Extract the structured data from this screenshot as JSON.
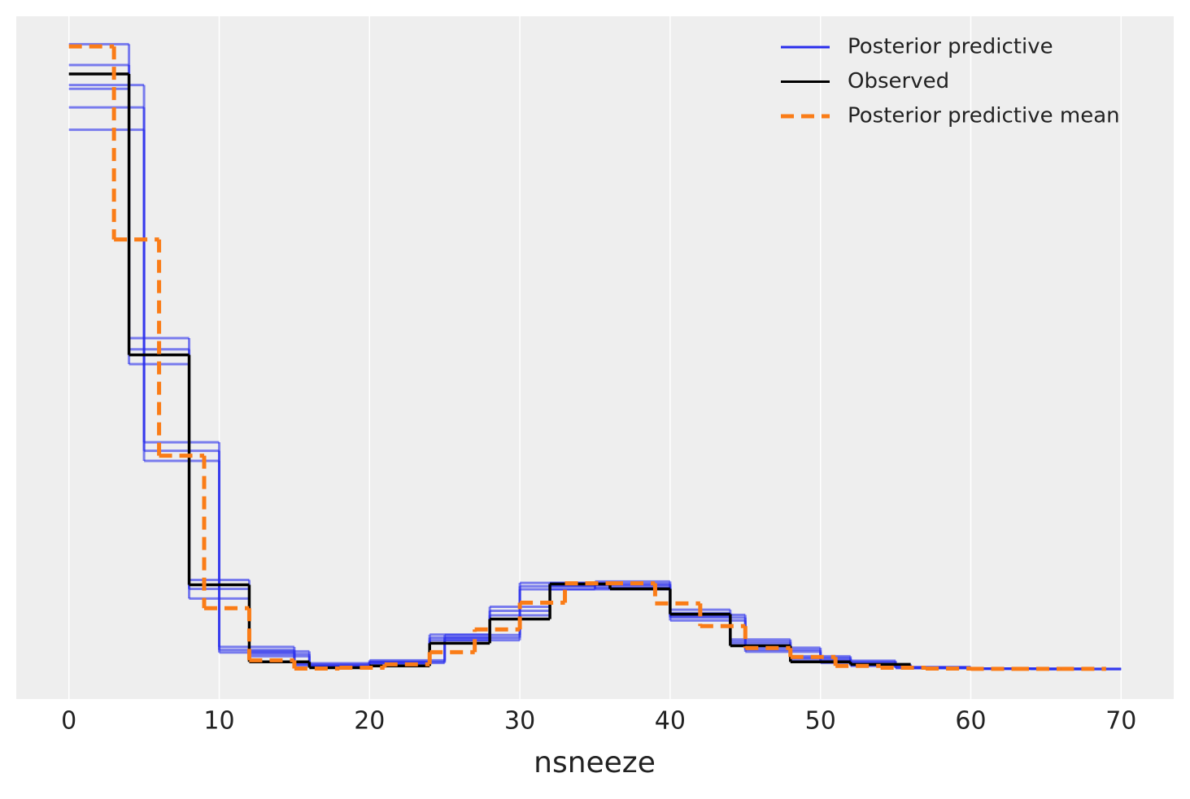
{
  "chart_data": {
    "type": "step-histogram",
    "x_label": "nsneeze",
    "xlim": [
      -3.5,
      73.5
    ],
    "xticks": [
      0,
      10,
      20,
      30,
      40,
      50,
      60,
      70
    ],
    "ylim": [
      -0.008,
      0.1755
    ],
    "grid": true,
    "legend": "upper right",
    "series": [
      {
        "name": "Posterior predictive",
        "color": "#2a2eec",
        "samples": [
          {
            "bins": [
              0,
              4,
              8,
              12,
              16,
              20,
              24,
              28,
              32,
              36,
              40,
              44,
              48,
              52,
              56,
              60,
              64,
              68
            ],
            "values": [
              0.1624,
              0.086,
              0.0216,
              0.0041,
              0.0007,
              0.0017,
              0.0085,
              0.0157,
              0.0223,
              0.0222,
              0.0151,
              0.0074,
              0.0031,
              0.0011,
              0.0004,
              0.0002,
              0.0001
            ]
          },
          {
            "bins": [
              0,
              4,
              8,
              12,
              16,
              20,
              24,
              28,
              32,
              36,
              40,
              44,
              48,
              52,
              56,
              60,
              64,
              68
            ],
            "values": [
              0.168,
              0.082,
              0.019,
              0.0035,
              0.0005,
              0.0012,
              0.0078,
              0.0145,
              0.0232,
              0.0215,
              0.0142,
              0.0068,
              0.0027,
              0.0009,
              0.0003,
              0.0001,
              0.0001
            ]
          },
          {
            "bins": [
              0,
              4,
              8,
              12,
              16,
              20,
              24,
              28,
              32,
              36,
              40,
              44,
              48,
              52,
              56,
              60,
              64,
              68
            ],
            "values": [
              0.156,
              0.089,
              0.024,
              0.0048,
              0.0009,
              0.002,
              0.0093,
              0.0168,
              0.0215,
              0.023,
              0.016,
              0.008,
              0.0035,
              0.0013,
              0.0005,
              0.0002,
              0.0001
            ]
          },
          {
            "bins": [
              0,
              5,
              10,
              15,
              20,
              25,
              30,
              35,
              40,
              45,
              50,
              55,
              60,
              65,
              70
            ],
            "values": [
              0.151,
              0.0587,
              0.0052,
              0.0013,
              0.002,
              0.0085,
              0.0223,
              0.0227,
              0.0139,
              0.0052,
              0.002,
              0.0004,
              0.0002,
              0.0001
            ]
          },
          {
            "bins": [
              0,
              5,
              10,
              15,
              20,
              25,
              30,
              35,
              40,
              45,
              50,
              55,
              60,
              65,
              70
            ],
            "values": [
              0.145,
              0.061,
              0.006,
              0.001,
              0.0017,
              0.0078,
              0.0215,
              0.0236,
              0.0146,
              0.0058,
              0.0023,
              0.0006,
              0.0002,
              0.0001
            ]
          },
          {
            "bins": [
              0,
              5,
              10,
              15,
              20,
              25,
              30,
              35,
              40,
              45,
              50,
              55,
              60,
              65,
              70
            ],
            "values": [
              0.157,
              0.056,
              0.0045,
              0.0016,
              0.0024,
              0.0092,
              0.0232,
              0.0218,
              0.0131,
              0.0047,
              0.0017,
              0.0003,
              0.0001,
              0
            ]
          }
        ]
      },
      {
        "name": "Observed",
        "color": "#000000",
        "bins": [
          0,
          4,
          8,
          12,
          16,
          20,
          24,
          28,
          32,
          36,
          40,
          44,
          48,
          52,
          56
        ],
        "values": [
          0.16,
          0.0845,
          0.0227,
          0.002,
          0.0004,
          0.0009,
          0.007,
          0.0135,
          0.0229,
          0.0216,
          0.0148,
          0.0063,
          0.002,
          0.0013
        ]
      },
      {
        "name": "Posterior predictive mean",
        "color": "#fa7c17",
        "dashed": true,
        "bins": [
          0,
          3,
          6,
          9,
          12,
          15,
          18,
          21,
          24,
          27,
          30,
          33,
          36,
          39,
          42,
          45,
          48,
          51,
          54,
          57,
          60,
          63,
          66,
          69
        ],
        "values": [
          0.1674,
          0.1155,
          0.0574,
          0.0164,
          0.0024,
          0.0002,
          0.0004,
          0.0013,
          0.0046,
          0.0107,
          0.0179,
          0.0231,
          0.0231,
          0.0177,
          0.0116,
          0.0057,
          0.0033,
          0.0009,
          0.0004,
          0.0002,
          0.0001,
          0.0001,
          0.0001
        ]
      }
    ]
  }
}
